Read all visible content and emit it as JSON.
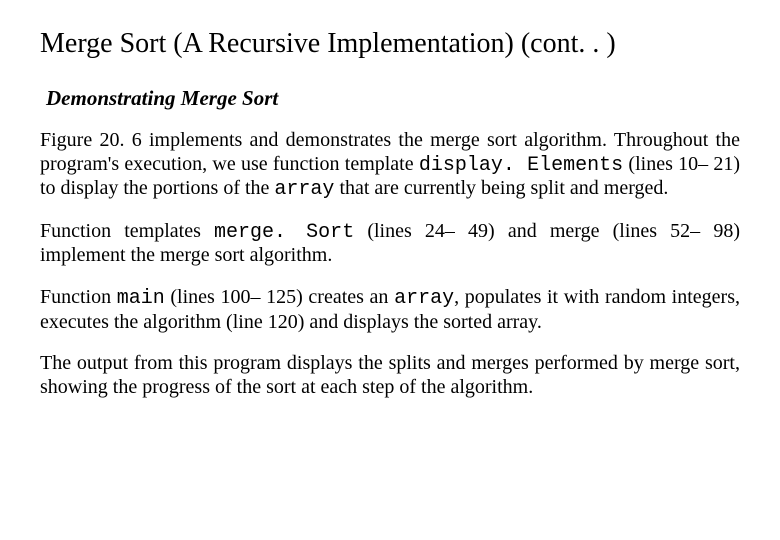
{
  "title": "Merge Sort (A Recursive Implementation) (cont. . )",
  "subtitle": "Demonstrating Merge Sort",
  "p1_a": "Figure 20. 6 implements and demonstrates the merge sort algorithm. Throughout the program's execution, we use function template ",
  "p1_code1": "display. Elements",
  "p1_b": " (lines 10– 21) to display the portions of the ",
  "p1_code2": "array",
  "p1_c": " that are currently being split and merged.",
  "p2_a": "Function templates ",
  "p2_code1": "merge. Sort",
  "p2_b": " (lines 24– 49) and merge (lines 52– 98) implement the merge sort algorithm.",
  "p3_a": "Function ",
  "p3_code1": "main",
  "p3_b": " (lines 100– 125) creates an ",
  "p3_code2": "array",
  "p3_c": ", populates it with random integers, executes the algorithm (line 120) and displays the sorted array.",
  "p4": "The output from this program displays the splits and merges performed by merge sort, showing the progress of the sort at each step of the algorithm."
}
